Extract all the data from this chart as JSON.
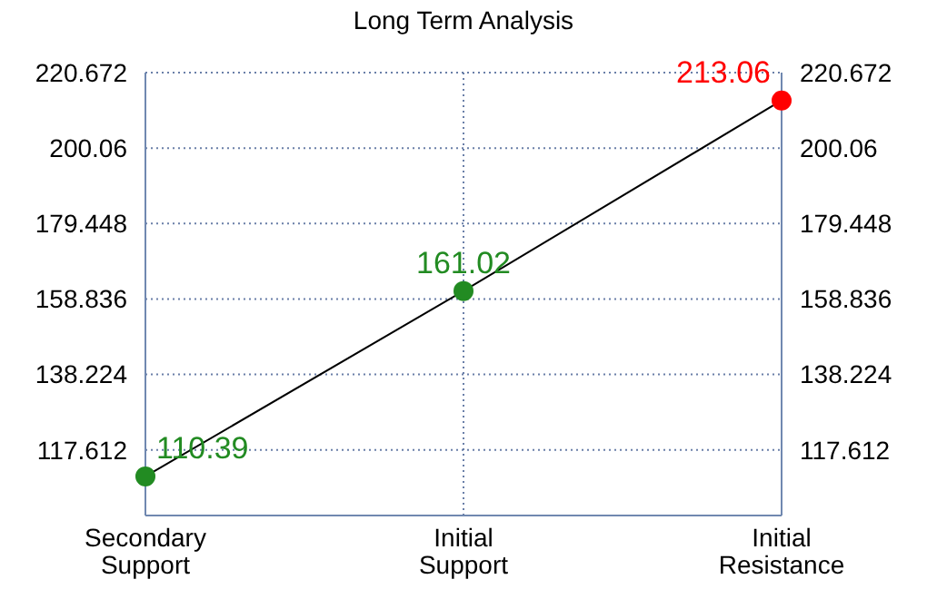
{
  "chart_data": {
    "type": "line",
    "title": "Long Term Analysis",
    "categories": [
      "Secondary\nSupport",
      "Initial\nSupport",
      "Initial\nResistance"
    ],
    "series": [
      {
        "color": "#000000",
        "colors": [
          "#228b22",
          "#228b22",
          "#ff0000"
        ],
        "values": [
          110.39,
          161.02,
          213.06
        ]
      }
    ],
    "ylim": [
      99.7,
      220.672
    ],
    "yticks": [
      117.612,
      138.224,
      158.836,
      179.448,
      200.06,
      220.672
    ],
    "y2lim": [
      99.7,
      220.672
    ],
    "y2ticks": [
      117.612,
      138.224,
      158.836,
      179.448,
      200.06,
      220.672
    ],
    "grid": true,
    "marker": "circle",
    "data_labels": true
  }
}
